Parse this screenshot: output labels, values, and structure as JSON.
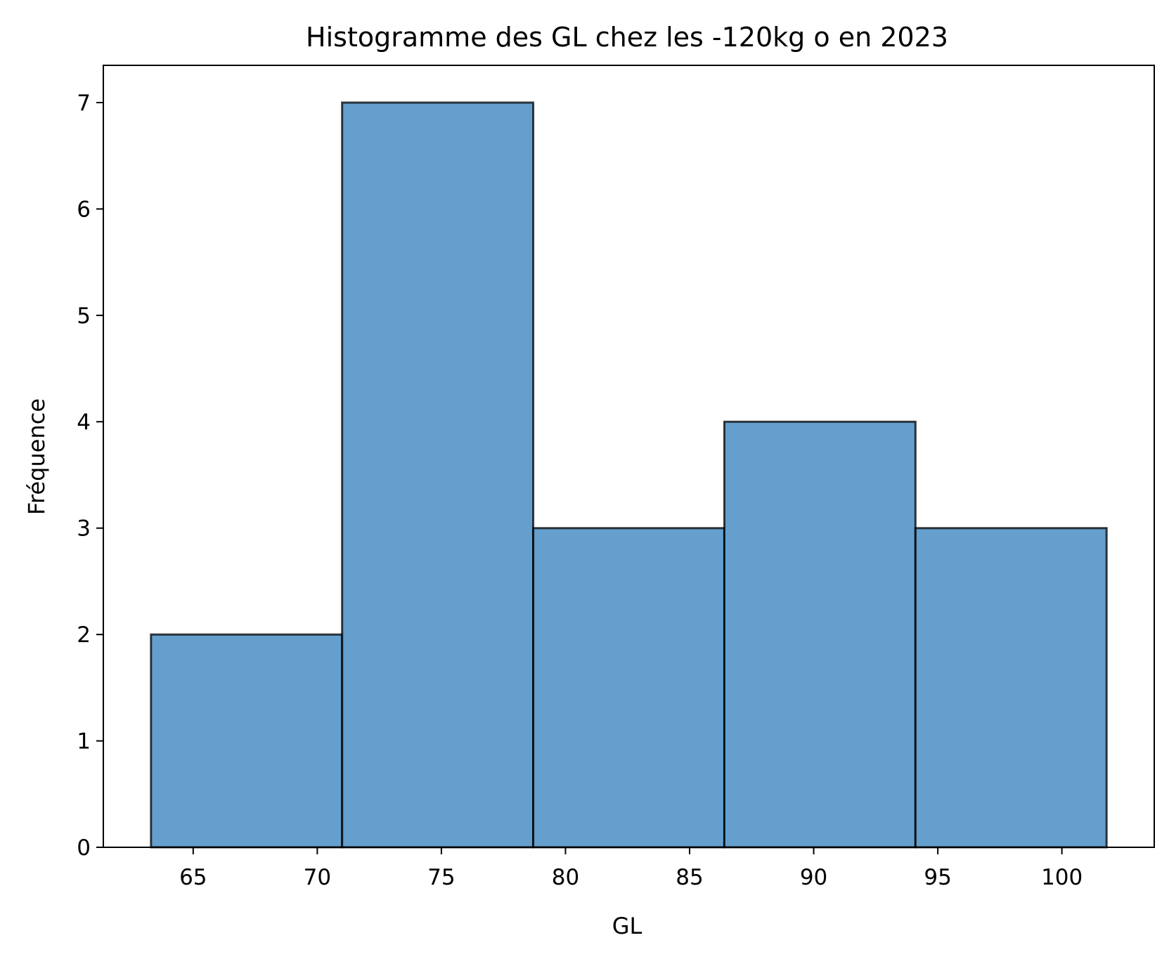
{
  "chart_data": {
    "type": "bar",
    "title": "Histogramme des GL chez les -120kg o en 2023",
    "xlabel": "GL",
    "ylabel": "Fréquence",
    "bins": [
      {
        "x0": 63.3,
        "x1": 71.0,
        "count": 2
      },
      {
        "x0": 71.0,
        "x1": 78.7,
        "count": 7
      },
      {
        "x0": 78.7,
        "x1": 86.4,
        "count": 3
      },
      {
        "x0": 86.4,
        "x1": 94.1,
        "count": 4
      },
      {
        "x0": 94.1,
        "x1": 101.8,
        "count": 3
      }
    ],
    "xlim": [
      61.38,
      103.72
    ],
    "ylim": [
      0,
      7.35
    ],
    "xticks": [
      65,
      70,
      75,
      80,
      85,
      90,
      95,
      100
    ],
    "yticks": [
      0,
      1,
      2,
      3,
      4,
      5,
      6,
      7
    ],
    "bar_color": "#4a8ec4",
    "edge_color": "#000000",
    "grid": false,
    "legend": "none"
  }
}
